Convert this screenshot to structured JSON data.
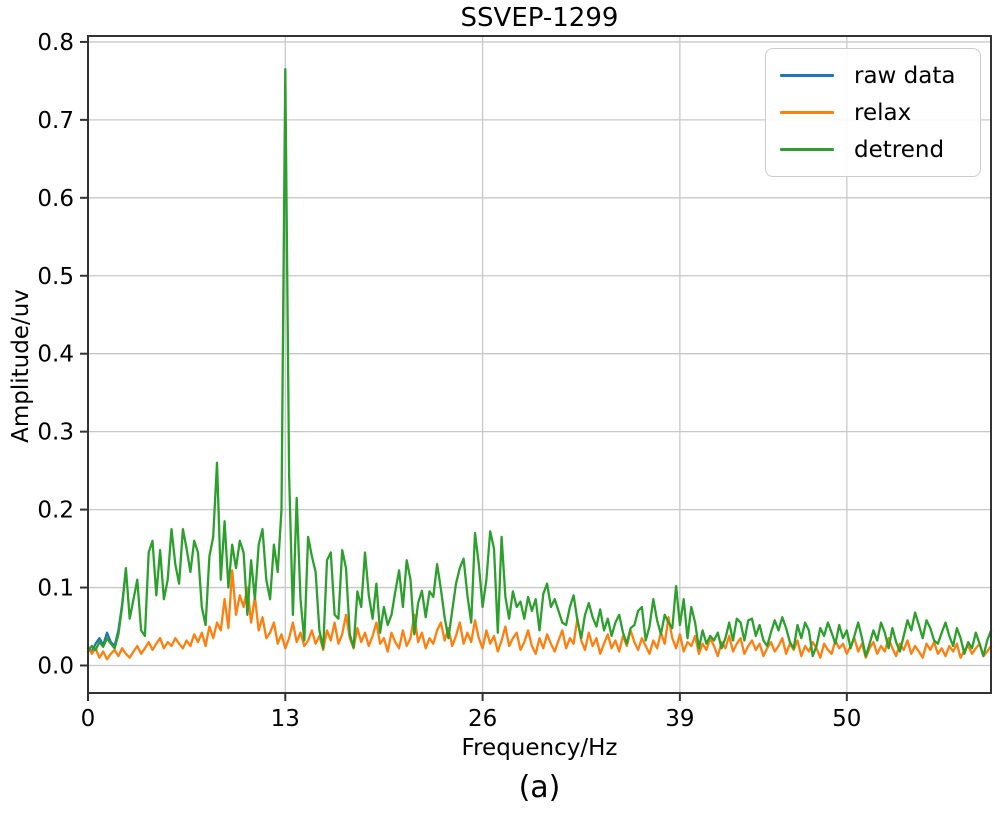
{
  "figure": {
    "title": "SSVEP-1299",
    "xlabel": "Frequency/Hz",
    "ylabel": "Amplitude/uv",
    "caption": "(a)"
  },
  "chart_data": {
    "type": "line",
    "title": "SSVEP-1299",
    "xlabel": "Frequency/Hz",
    "ylabel": "Amplitude/uv",
    "grid": true,
    "legend_position": "upper right",
    "xlim": [
      0,
      59.5
    ],
    "ylim": [
      -0.0353,
      0.8076
    ],
    "xticks": {
      "values": [
        0,
        13,
        26,
        39,
        50
      ],
      "labels": [
        "0",
        "13",
        "26",
        "39",
        "50"
      ]
    },
    "yticks": {
      "values": [
        0.0,
        0.1,
        0.2,
        0.3,
        0.4,
        0.5,
        0.6,
        0.7,
        0.8
      ],
      "labels": [
        "0.0",
        "0.1",
        "0.2",
        "0.3",
        "0.4",
        "0.5",
        "0.6",
        "0.7",
        "0.8"
      ]
    },
    "x_start": 0,
    "x_step": 0.25,
    "x_unit": "Hz",
    "peak": {
      "series": "detrend",
      "x": 13.0,
      "y": 0.765
    },
    "colors": {
      "spine": "#333333",
      "gridline": "#c8c8c8",
      "text": "#000000"
    },
    "series": [
      {
        "name": "raw data",
        "color": "#1f77b4",
        "values": [
          0.022,
          0.018,
          0.028,
          0.035,
          0.026,
          0.042,
          0.03,
          0.025,
          0.045,
          0.078,
          0.123
        ]
      },
      {
        "name": "relax",
        "color": "#ff7f0e",
        "values": [
          0.025,
          0.015,
          0.022,
          0.01,
          0.018,
          0.008,
          0.015,
          0.02,
          0.012,
          0.022,
          0.015,
          0.01,
          0.018,
          0.025,
          0.015,
          0.022,
          0.03,
          0.02,
          0.028,
          0.035,
          0.022,
          0.03,
          0.025,
          0.035,
          0.028,
          0.022,
          0.032,
          0.025,
          0.04,
          0.03,
          0.042,
          0.025,
          0.05,
          0.035,
          0.055,
          0.045,
          0.085,
          0.048,
          0.122,
          0.065,
          0.09,
          0.075,
          0.1,
          0.055,
          0.088,
          0.045,
          0.062,
          0.035,
          0.042,
          0.055,
          0.028,
          0.04,
          0.022,
          0.035,
          0.055,
          0.03,
          0.042,
          0.025,
          0.032,
          0.045,
          0.028,
          0.038,
          0.02,
          0.045,
          0.032,
          0.055,
          0.028,
          0.04,
          0.065,
          0.035,
          0.022,
          0.048,
          0.03,
          0.042,
          0.025,
          0.038,
          0.055,
          0.028,
          0.035,
          0.018,
          0.042,
          0.03,
          0.022,
          0.045,
          0.025,
          0.035,
          0.065,
          0.03,
          0.042,
          0.022,
          0.035,
          0.028,
          0.045,
          0.055,
          0.032,
          0.048,
          0.025,
          0.038,
          0.055,
          0.028,
          0.042,
          0.03,
          0.058,
          0.035,
          0.022,
          0.045,
          0.028,
          0.038,
          0.018,
          0.032,
          0.05,
          0.025,
          0.035,
          0.042,
          0.02,
          0.03,
          0.045,
          0.025,
          0.015,
          0.035,
          0.022,
          0.04,
          0.028,
          0.018,
          0.032,
          0.045,
          0.022,
          0.035,
          0.028,
          0.06,
          0.032,
          0.02,
          0.042,
          0.025,
          0.035,
          0.015,
          0.028,
          0.04,
          0.022,
          0.032,
          0.018,
          0.038,
          0.025,
          0.045,
          0.03,
          0.02,
          0.035,
          0.025,
          0.015,
          0.032,
          0.022,
          0.042,
          0.028,
          0.062,
          0.035,
          0.022,
          0.04,
          0.018,
          0.03,
          0.025,
          0.038,
          0.015,
          0.028,
          0.02,
          0.035,
          0.025,
          0.012,
          0.03,
          0.022,
          0.038,
          0.018,
          0.028,
          0.035,
          0.015,
          0.025,
          0.032,
          0.02,
          0.028,
          0.012,
          0.022,
          0.03,
          0.018,
          0.025,
          0.035,
          0.015,
          0.028,
          0.02,
          0.032,
          0.012,
          0.025,
          0.018,
          0.03,
          0.022,
          0.01,
          0.028,
          0.02,
          0.015,
          0.032,
          0.022,
          0.028,
          0.015,
          0.025,
          0.035,
          0.018,
          0.028,
          0.01,
          0.022,
          0.03,
          0.015,
          0.025,
          0.018,
          0.035,
          0.022,
          0.012,
          0.028,
          0.02,
          0.032,
          0.015,
          0.025,
          0.018,
          0.01,
          0.028,
          0.02,
          0.03,
          0.015,
          0.022,
          0.012,
          0.025,
          0.018,
          0.028,
          0.01,
          0.02,
          0.025,
          0.015,
          0.022,
          0.028,
          0.012,
          0.018,
          0.025
        ]
      },
      {
        "name": "detrend",
        "color": "#2ca02c",
        "values": [
          0.018,
          0.025,
          0.02,
          0.03,
          0.024,
          0.035,
          0.028,
          0.022,
          0.04,
          0.075,
          0.125,
          0.06,
          0.085,
          0.11,
          0.045,
          0.038,
          0.145,
          0.16,
          0.09,
          0.148,
          0.085,
          0.11,
          0.175,
          0.13,
          0.105,
          0.175,
          0.15,
          0.12,
          0.16,
          0.145,
          0.075,
          0.052,
          0.14,
          0.165,
          0.26,
          0.11,
          0.185,
          0.1,
          0.155,
          0.125,
          0.16,
          0.145,
          0.065,
          0.135,
          0.085,
          0.155,
          0.175,
          0.11,
          0.085,
          0.155,
          0.12,
          0.2,
          0.765,
          0.245,
          0.065,
          0.215,
          0.085,
          0.032,
          0.165,
          0.14,
          0.12,
          0.045,
          0.022,
          0.135,
          0.145,
          0.065,
          0.06,
          0.148,
          0.125,
          0.04,
          0.023,
          0.095,
          0.075,
          0.145,
          0.09,
          0.06,
          0.105,
          0.042,
          0.075,
          0.052,
          0.065,
          0.095,
          0.122,
          0.075,
          0.135,
          0.11,
          0.04,
          0.08,
          0.096,
          0.062,
          0.095,
          0.088,
          0.13,
          0.098,
          0.062,
          0.035,
          0.07,
          0.105,
          0.125,
          0.137,
          0.09,
          0.055,
          0.17,
          0.13,
          0.075,
          0.11,
          0.172,
          0.15,
          0.042,
          0.165,
          0.088,
          0.06,
          0.095,
          0.075,
          0.082,
          0.06,
          0.088,
          0.07,
          0.085,
          0.045,
          0.092,
          0.105,
          0.075,
          0.085,
          0.07,
          0.055,
          0.052,
          0.075,
          0.09,
          0.058,
          0.035,
          0.065,
          0.08,
          0.062,
          0.05,
          0.072,
          0.045,
          0.06,
          0.038,
          0.055,
          0.065,
          0.042,
          0.028,
          0.048,
          0.052,
          0.07,
          0.075,
          0.032,
          0.05,
          0.085,
          0.058,
          0.04,
          0.065,
          0.055,
          0.048,
          0.102,
          0.052,
          0.085,
          0.035,
          0.075,
          0.055,
          0.022,
          0.045,
          0.028,
          0.038,
          0.032,
          0.042,
          0.022,
          0.035,
          0.055,
          0.032,
          0.06,
          0.055,
          0.032,
          0.058,
          0.06,
          0.038,
          0.052,
          0.032,
          0.025,
          0.042,
          0.058,
          0.045,
          0.062,
          0.048,
          0.03,
          0.022,
          0.052,
          0.035,
          0.055,
          0.045,
          0.012,
          0.025,
          0.048,
          0.038,
          0.055,
          0.042,
          0.028,
          0.052,
          0.035,
          0.045,
          0.022,
          0.038,
          0.055,
          0.035,
          0.012,
          0.028,
          0.045,
          0.032,
          0.055,
          0.042,
          0.022,
          0.048,
          0.03,
          0.018,
          0.038,
          0.058,
          0.045,
          0.068,
          0.052,
          0.035,
          0.058,
          0.048,
          0.032,
          0.028,
          0.042,
          0.055,
          0.038,
          0.025,
          0.048,
          0.035,
          0.015,
          0.03,
          0.022,
          0.042,
          0.028,
          0.012,
          0.032,
          0.045
        ]
      }
    ]
  }
}
